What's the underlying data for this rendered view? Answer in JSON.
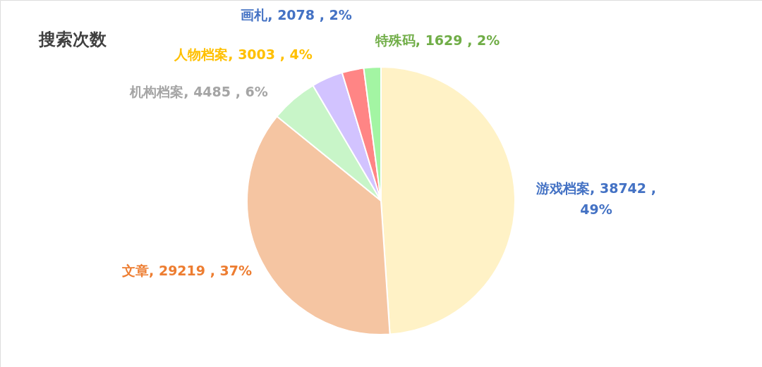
{
  "chart_data": {
    "type": "pie",
    "title": "搜索次数",
    "categories": [
      "游戏档案",
      "文章",
      "机构档案",
      "人物档案",
      "画札",
      "特殊码"
    ],
    "values": [
      38742,
      29219,
      4485,
      3003,
      2078,
      1629
    ],
    "colors": [
      "#fff2c6",
      "#f5c5a2",
      "#c8f5c8",
      "#d2c3ff",
      "#ff8585",
      "#a3f5a3"
    ],
    "value_labels": [
      "38742 , 49%",
      "29219 , 37%",
      "4485 , 6%",
      "3003 , 4%",
      "2078 , 2%",
      "1629 , 2%"
    ]
  }
}
